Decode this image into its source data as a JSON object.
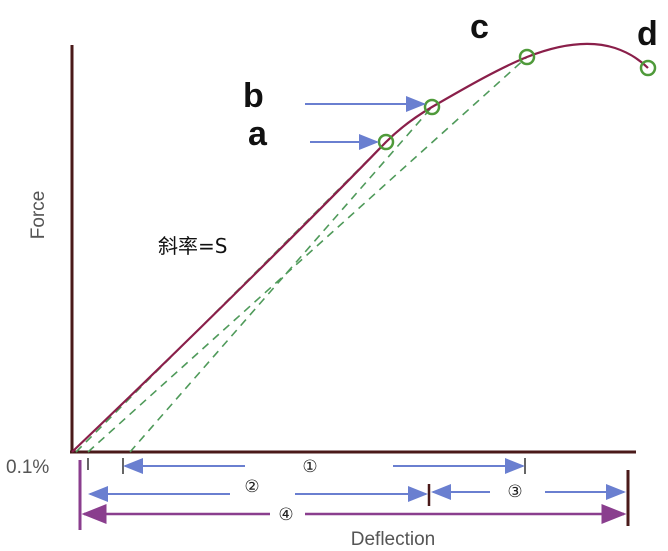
{
  "axes": {
    "y_label": "Force",
    "x_label": "Deflection",
    "origin_label": "0.1%"
  },
  "points": {
    "a": "a",
    "b": "b",
    "c": "c",
    "d": "d"
  },
  "slope_label": "斜率=S",
  "spans": [
    "①",
    "②",
    "③",
    "④"
  ]
}
